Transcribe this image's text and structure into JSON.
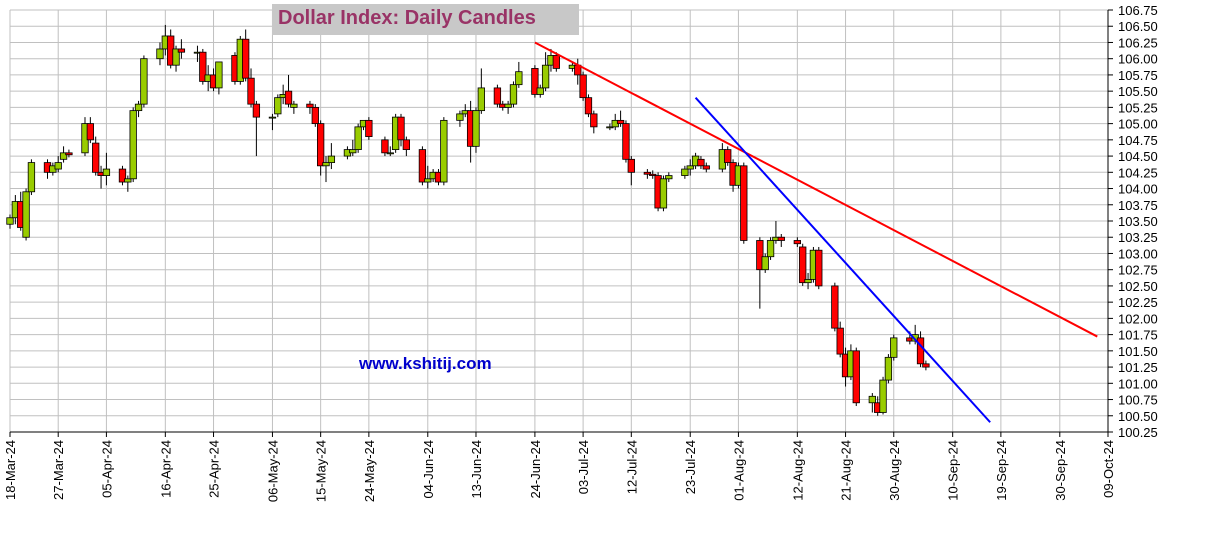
{
  "chart_data": {
    "type": "candlestick",
    "title": "Dollar Index: Daily Candles",
    "watermark": "www.kshitij.com",
    "y_axis": {
      "side": "right",
      "ylim": [
        100.25,
        106.75
      ],
      "ticks": [
        "106.75",
        "106.50",
        "106.25",
        "106.00",
        "105.75",
        "105.50",
        "105.25",
        "105.00",
        "104.75",
        "104.50",
        "104.25",
        "104.00",
        "103.75",
        "103.50",
        "103.25",
        "103.00",
        "102.75",
        "102.50",
        "102.25",
        "102.00",
        "101.75",
        "101.50",
        "101.25",
        "101.00",
        "100.75",
        "100.50",
        "100.25"
      ]
    },
    "x_axis": {
      "range": [
        "2024-03-18",
        "2024-10-09"
      ],
      "tick_labels": [
        "18-Mar-24",
        "27-Mar-24",
        "05-Apr-24",
        "16-Apr-24",
        "25-Apr-24",
        "06-May-24",
        "15-May-24",
        "24-May-24",
        "04-Jun-24",
        "13-Jun-24",
        "24-Jun-24",
        "03-Jul-24",
        "12-Jul-24",
        "23-Jul-24",
        "01-Aug-24",
        "12-Aug-24",
        "21-Aug-24",
        "30-Aug-24",
        "10-Sep-24",
        "19-Sep-24",
        "30-Sep-24",
        "09-Oct-24"
      ]
    },
    "grid": true,
    "colors": {
      "up": "#99cc00",
      "down": "#ff0000",
      "wick": "#000000",
      "trend_red": "#ff0000",
      "trend_blue": "#0000ff",
      "title_bg": "#c8c8c8",
      "title": "#993366",
      "watermark": "#0000cc"
    },
    "trendlines": [
      {
        "color": "#ff0000",
        "from": {
          "date": "2024-06-24",
          "value": 106.25
        },
        "to": {
          "date": "2024-10-07",
          "value": 101.72
        }
      },
      {
        "color": "#0000ff",
        "from": {
          "date": "2024-07-24",
          "value": 105.4
        },
        "to": {
          "date": "2024-09-17",
          "value": 100.4
        }
      }
    ],
    "candles": [
      [
        "2024-03-18",
        103.45,
        103.6,
        103.38,
        103.55
      ],
      [
        "2024-03-19",
        103.55,
        103.9,
        103.45,
        103.8
      ],
      [
        "2024-03-20",
        103.8,
        103.95,
        103.35,
        103.4
      ],
      [
        "2024-03-21",
        103.25,
        104.0,
        103.2,
        103.95
      ],
      [
        "2024-03-22",
        103.95,
        104.45,
        103.9,
        104.4
      ],
      [
        "2024-03-25",
        104.4,
        104.45,
        104.15,
        104.25
      ],
      [
        "2024-03-26",
        104.25,
        104.4,
        104.2,
        104.35
      ],
      [
        "2024-03-27",
        104.3,
        104.5,
        104.25,
        104.4
      ],
      [
        "2024-03-28",
        104.45,
        104.65,
        104.4,
        104.55
      ],
      [
        "2024-03-29",
        104.55,
        104.6,
        104.48,
        104.52
      ],
      [
        "2024-04-01",
        104.55,
        105.1,
        104.5,
        105.0
      ],
      [
        "2024-04-02",
        105.0,
        105.1,
        104.7,
        104.75
      ],
      [
        "2024-04-03",
        104.7,
        104.8,
        104.2,
        104.25
      ],
      [
        "2024-04-04",
        104.25,
        104.35,
        104.0,
        104.2
      ],
      [
        "2024-04-05",
        104.2,
        104.55,
        104.05,
        104.3
      ],
      [
        "2024-04-08",
        104.3,
        104.35,
        104.05,
        104.1
      ],
      [
        "2024-04-09",
        104.1,
        104.2,
        103.95,
        104.15
      ],
      [
        "2024-04-10",
        104.15,
        105.25,
        104.1,
        105.2
      ],
      [
        "2024-04-11",
        105.2,
        105.35,
        105.1,
        105.3
      ],
      [
        "2024-04-12",
        105.3,
        106.05,
        105.25,
        106.0
      ],
      [
        "2024-04-15",
        106.0,
        106.25,
        105.9,
        106.15
      ],
      [
        "2024-04-16",
        106.15,
        106.52,
        106.05,
        106.35
      ],
      [
        "2024-04-17",
        106.35,
        106.45,
        105.85,
        105.9
      ],
      [
        "2024-04-18",
        105.9,
        106.2,
        105.8,
        106.15
      ],
      [
        "2024-04-19",
        106.15,
        106.3,
        106.0,
        106.1
      ],
      [
        "2024-04-22",
        106.1,
        106.2,
        105.95,
        106.1
      ],
      [
        "2024-04-23",
        106.1,
        106.15,
        105.6,
        105.65
      ],
      [
        "2024-04-24",
        105.65,
        105.9,
        105.5,
        105.75
      ],
      [
        "2024-04-25",
        105.75,
        105.85,
        105.5,
        105.55
      ],
      [
        "2024-04-26",
        105.55,
        105.95,
        105.45,
        105.95
      ],
      [
        "2024-04-29",
        106.05,
        106.1,
        105.6,
        105.65
      ],
      [
        "2024-04-30",
        105.65,
        106.35,
        105.6,
        106.3
      ],
      [
        "2024-05-01",
        106.3,
        106.45,
        105.65,
        105.7
      ],
      [
        "2024-05-02",
        105.7,
        105.85,
        105.25,
        105.3
      ],
      [
        "2024-05-03",
        105.3,
        105.35,
        104.5,
        105.1
      ],
      [
        "2024-05-06",
        105.1,
        105.15,
        104.9,
        105.1
      ],
      [
        "2024-05-07",
        105.15,
        105.45,
        105.1,
        105.4
      ],
      [
        "2024-05-08",
        105.4,
        105.6,
        105.3,
        105.45
      ],
      [
        "2024-05-09",
        105.5,
        105.75,
        105.25,
        105.3
      ],
      [
        "2024-05-10",
        105.25,
        105.35,
        105.15,
        105.3
      ],
      [
        "2024-05-13",
        105.3,
        105.35,
        105.15,
        105.25
      ],
      [
        "2024-05-14",
        105.25,
        105.3,
        104.95,
        105.0
      ],
      [
        "2024-05-15",
        105.0,
        105.05,
        104.2,
        104.35
      ],
      [
        "2024-05-16",
        104.35,
        104.5,
        104.1,
        104.4
      ],
      [
        "2024-05-17",
        104.4,
        104.7,
        104.3,
        104.5
      ],
      [
        "2024-05-20",
        104.5,
        104.65,
        104.45,
        104.6
      ],
      [
        "2024-05-21",
        104.55,
        104.75,
        104.5,
        104.6
      ],
      [
        "2024-05-22",
        104.6,
        105.0,
        104.55,
        104.95
      ],
      [
        "2024-05-23",
        104.95,
        105.05,
        104.9,
        105.05
      ],
      [
        "2024-05-24",
        105.05,
        105.1,
        104.75,
        104.8
      ],
      [
        "2024-05-27",
        104.75,
        104.8,
        104.5,
        104.55
      ],
      [
        "2024-05-28",
        104.55,
        104.65,
        104.5,
        104.55
      ],
      [
        "2024-05-29",
        104.6,
        105.15,
        104.55,
        105.1
      ],
      [
        "2024-05-30",
        105.1,
        105.15,
        104.65,
        104.75
      ],
      [
        "2024-05-31",
        104.75,
        104.8,
        104.5,
        104.6
      ],
      [
        "2024-06-03",
        104.6,
        104.65,
        104.05,
        104.1
      ],
      [
        "2024-06-04",
        104.1,
        104.35,
        104.0,
        104.15
      ],
      [
        "2024-06-05",
        104.15,
        104.3,
        104.1,
        104.25
      ],
      [
        "2024-06-06",
        104.25,
        104.3,
        104.05,
        104.1
      ],
      [
        "2024-06-07",
        104.1,
        105.1,
        104.05,
        105.05
      ],
      [
        "2024-06-10",
        105.05,
        105.2,
        104.95,
        105.15
      ],
      [
        "2024-06-11",
        105.15,
        105.3,
        105.1,
        105.2
      ],
      [
        "2024-06-12",
        105.2,
        105.35,
        104.4,
        104.65
      ],
      [
        "2024-06-13",
        104.65,
        105.25,
        104.55,
        105.2
      ],
      [
        "2024-06-14",
        105.2,
        105.85,
        105.15,
        105.55
      ],
      [
        "2024-06-17",
        105.55,
        105.6,
        105.25,
        105.3
      ],
      [
        "2024-06-18",
        105.3,
        105.35,
        105.2,
        105.25
      ],
      [
        "2024-06-19",
        105.25,
        105.35,
        105.15,
        105.3
      ],
      [
        "2024-06-20",
        105.3,
        105.65,
        105.25,
        105.6
      ],
      [
        "2024-06-21",
        105.6,
        105.95,
        105.55,
        105.8
      ],
      [
        "2024-06-24",
        105.85,
        105.9,
        105.4,
        105.45
      ],
      [
        "2024-06-25",
        105.45,
        105.6,
        105.4,
        105.55
      ],
      [
        "2024-06-26",
        105.55,
        106.1,
        105.5,
        105.9
      ],
      [
        "2024-06-27",
        105.9,
        106.15,
        105.8,
        106.05
      ],
      [
        "2024-06-28",
        106.05,
        106.1,
        105.8,
        105.85
      ],
      [
        "2024-07-01",
        105.85,
        105.95,
        105.8,
        105.9
      ],
      [
        "2024-07-02",
        105.9,
        106.0,
        105.6,
        105.75
      ],
      [
        "2024-07-03",
        105.75,
        105.8,
        105.35,
        105.4
      ],
      [
        "2024-07-04",
        105.4,
        105.45,
        105.1,
        105.15
      ],
      [
        "2024-07-05",
        105.15,
        105.2,
        104.85,
        104.95
      ],
      [
        "2024-07-08",
        104.95,
        105.0,
        104.9,
        104.95
      ],
      [
        "2024-07-09",
        104.95,
        105.15,
        104.9,
        105.05
      ],
      [
        "2024-07-10",
        105.05,
        105.2,
        104.95,
        105.0
      ],
      [
        "2024-07-11",
        105.0,
        105.05,
        104.4,
        104.45
      ],
      [
        "2024-07-12",
        104.45,
        104.5,
        104.05,
        104.25
      ],
      [
        "2024-07-15",
        104.25,
        104.3,
        104.15,
        104.22
      ],
      [
        "2024-07-16",
        104.22,
        104.28,
        104.15,
        104.2
      ],
      [
        "2024-07-17",
        104.2,
        104.25,
        103.65,
        103.7
      ],
      [
        "2024-07-18",
        103.7,
        104.2,
        103.65,
        104.15
      ],
      [
        "2024-07-19",
        104.15,
        104.25,
        104.1,
        104.2
      ],
      [
        "2024-07-22",
        104.2,
        104.35,
        104.15,
        104.3
      ],
      [
        "2024-07-23",
        104.3,
        104.45,
        104.2,
        104.35
      ],
      [
        "2024-07-24",
        104.35,
        104.55,
        104.3,
        104.5
      ],
      [
        "2024-07-25",
        104.45,
        104.5,
        104.3,
        104.35
      ],
      [
        "2024-07-26",
        104.35,
        104.4,
        104.25,
        104.3
      ],
      [
        "2024-07-29",
        104.3,
        104.7,
        104.25,
        104.6
      ],
      [
        "2024-07-30",
        104.6,
        104.65,
        104.35,
        104.4
      ],
      [
        "2024-07-31",
        104.4,
        104.45,
        103.95,
        104.05
      ],
      [
        "2024-08-01",
        104.05,
        104.4,
        104.0,
        104.35
      ],
      [
        "2024-08-02",
        104.35,
        104.4,
        103.15,
        103.2
      ],
      [
        "2024-08-05",
        103.2,
        103.25,
        102.15,
        102.75
      ],
      [
        "2024-08-06",
        102.75,
        103.0,
        102.7,
        102.95
      ],
      [
        "2024-08-07",
        102.95,
        103.25,
        102.9,
        103.2
      ],
      [
        "2024-08-08",
        103.2,
        103.5,
        103.15,
        103.25
      ],
      [
        "2024-08-09",
        103.25,
        103.3,
        103.1,
        103.2
      ],
      [
        "2024-08-12",
        103.2,
        103.25,
        103.1,
        103.15
      ],
      [
        "2024-08-13",
        103.1,
        103.15,
        102.5,
        102.55
      ],
      [
        "2024-08-14",
        102.55,
        102.7,
        102.45,
        102.6
      ],
      [
        "2024-08-15",
        102.6,
        103.1,
        102.55,
        103.05
      ],
      [
        "2024-08-16",
        103.05,
        103.1,
        102.45,
        102.5
      ],
      [
        "2024-08-19",
        102.5,
        102.55,
        101.8,
        101.85
      ],
      [
        "2024-08-20",
        101.85,
        101.95,
        101.4,
        101.45
      ],
      [
        "2024-08-21",
        101.45,
        101.55,
        100.95,
        101.1
      ],
      [
        "2024-08-22",
        101.1,
        101.6,
        101.05,
        101.5
      ],
      [
        "2024-08-23",
        101.5,
        101.55,
        100.65,
        100.7
      ],
      [
        "2024-08-26",
        100.7,
        100.85,
        100.55,
        100.8
      ],
      [
        "2024-08-27",
        100.7,
        100.8,
        100.5,
        100.55
      ],
      [
        "2024-08-28",
        100.55,
        101.1,
        100.52,
        101.05
      ],
      [
        "2024-08-29",
        101.05,
        101.45,
        101.0,
        101.4
      ],
      [
        "2024-08-30",
        101.4,
        101.75,
        101.35,
        101.7
      ],
      [
        "2024-09-02",
        101.7,
        101.8,
        101.6,
        101.65
      ],
      [
        "2024-09-03",
        101.65,
        101.9,
        101.6,
        101.75
      ],
      [
        "2024-09-04",
        101.7,
        101.8,
        101.25,
        101.3
      ],
      [
        "2024-09-05",
        101.3,
        101.35,
        101.2,
        101.25
      ]
    ]
  }
}
